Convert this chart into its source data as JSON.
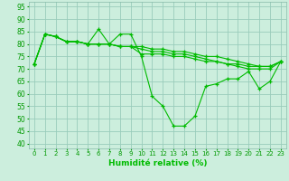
{
  "xlabel": "Humidité relative (%)",
  "bg_color": "#cceedd",
  "grid_color": "#99ccbb",
  "line_color": "#00bb00",
  "xlim": [
    -0.5,
    23.5
  ],
  "ylim": [
    38,
    97
  ],
  "yticks": [
    40,
    45,
    50,
    55,
    60,
    65,
    70,
    75,
    80,
    85,
    90,
    95
  ],
  "xticks": [
    0,
    1,
    2,
    3,
    4,
    5,
    6,
    7,
    8,
    9,
    10,
    11,
    12,
    13,
    14,
    15,
    16,
    17,
    18,
    19,
    20,
    21,
    22,
    23
  ],
  "series": [
    [
      72,
      84,
      83,
      81,
      81,
      80,
      86,
      80,
      84,
      84,
      75,
      59,
      55,
      47,
      47,
      51,
      63,
      64,
      66,
      66,
      69,
      62,
      65,
      73
    ],
    [
      72,
      84,
      83,
      81,
      81,
      80,
      80,
      80,
      79,
      79,
      76,
      76,
      76,
      75,
      75,
      74,
      73,
      73,
      72,
      71,
      70,
      70,
      70,
      73
    ],
    [
      72,
      84,
      83,
      81,
      81,
      80,
      80,
      80,
      79,
      79,
      78,
      77,
      77,
      76,
      76,
      75,
      74,
      73,
      72,
      72,
      71,
      71,
      71,
      73
    ],
    [
      72,
      84,
      83,
      81,
      81,
      80,
      80,
      80,
      79,
      79,
      79,
      78,
      78,
      77,
      77,
      76,
      75,
      75,
      74,
      73,
      72,
      71,
      71,
      73
    ]
  ]
}
